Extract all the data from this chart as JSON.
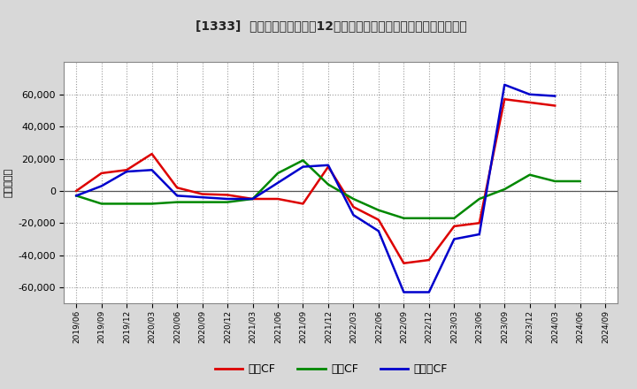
{
  "title": "[1333]  キャッシュフローの12か月移動合計の対前年同期増減額の推移",
  "ylabel": "（百万円）",
  "background_color": "#d8d8d8",
  "plot_bg_color": "#ffffff",
  "grid_color": "#999999",
  "dates": [
    "2019/06",
    "2019/09",
    "2019/12",
    "2020/03",
    "2020/06",
    "2020/09",
    "2020/12",
    "2021/03",
    "2021/06",
    "2021/09",
    "2021/12",
    "2022/03",
    "2022/06",
    "2022/09",
    "2022/12",
    "2023/03",
    "2023/06",
    "2023/09",
    "2023/12",
    "2024/03",
    "2024/06",
    "2024/09"
  ],
  "operating_cf": [
    0,
    11000,
    13000,
    23000,
    2000,
    -2000,
    -2500,
    -5000,
    -5000,
    -8000,
    15000,
    -10000,
    -18000,
    -45000,
    -43000,
    -22000,
    -20000,
    57000,
    55000,
    53000,
    null,
    null
  ],
  "investing_cf": [
    -3000,
    -8000,
    -8000,
    -8000,
    -7000,
    -7000,
    -7000,
    -5000,
    11000,
    19000,
    4000,
    -5000,
    -12000,
    -17000,
    -17000,
    -17000,
    -5000,
    1000,
    10000,
    6000,
    6000,
    null
  ],
  "free_cf": [
    -3000,
    3000,
    12000,
    13000,
    -3000,
    -4000,
    -5000,
    -5000,
    5000,
    15000,
    16000,
    -15000,
    -25000,
    -63000,
    -63000,
    -30000,
    -27000,
    66000,
    60000,
    59000,
    null,
    null
  ],
  "operating_color": "#dd0000",
  "investing_color": "#008800",
  "free_color": "#0000cc",
  "ylim": [
    -70000,
    80000
  ],
  "yticks": [
    -60000,
    -40000,
    -20000,
    0,
    20000,
    40000,
    60000
  ],
  "legend_labels": [
    "営業CF",
    "投賃CF",
    "フリーCF"
  ]
}
